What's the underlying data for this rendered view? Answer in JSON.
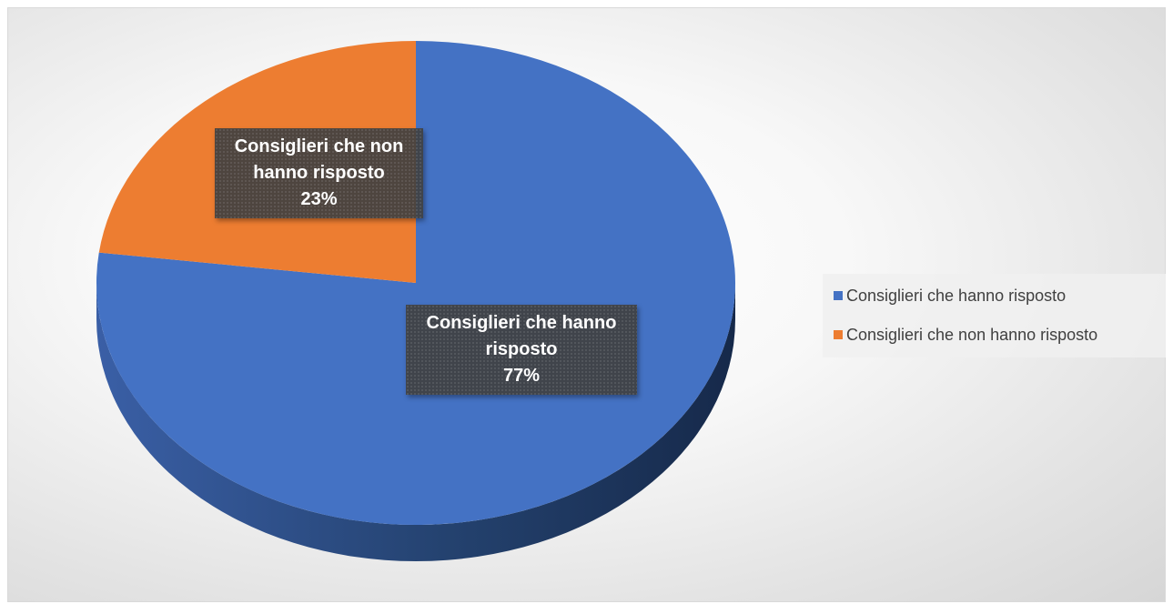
{
  "chart_data": {
    "type": "pie",
    "style": "3d",
    "slices": [
      {
        "label": "Consiglieri che hanno risposto",
        "value": 77,
        "display": "77%",
        "color": "#4472C4",
        "side_color": "#2F528F"
      },
      {
        "label": "Consiglieri che non hanno risposto",
        "value": 23,
        "display": "23%",
        "color": "#ED7D31",
        "side_color": "#AE5A21"
      }
    ],
    "legend_placement": "right"
  },
  "labels": {
    "responded": {
      "line1": "Consiglieri che hanno",
      "line2": "risposto",
      "pct": "77%"
    },
    "not_responded": {
      "line1": "Consiglieri che non",
      "line2": "hanno risposto",
      "pct": "23%"
    }
  },
  "legend": {
    "items": [
      {
        "label": "Consiglieri che hanno risposto",
        "color": "#4472C4"
      },
      {
        "label": "Consiglieri che non hanno risposto",
        "color": "#ED7D31"
      }
    ]
  }
}
